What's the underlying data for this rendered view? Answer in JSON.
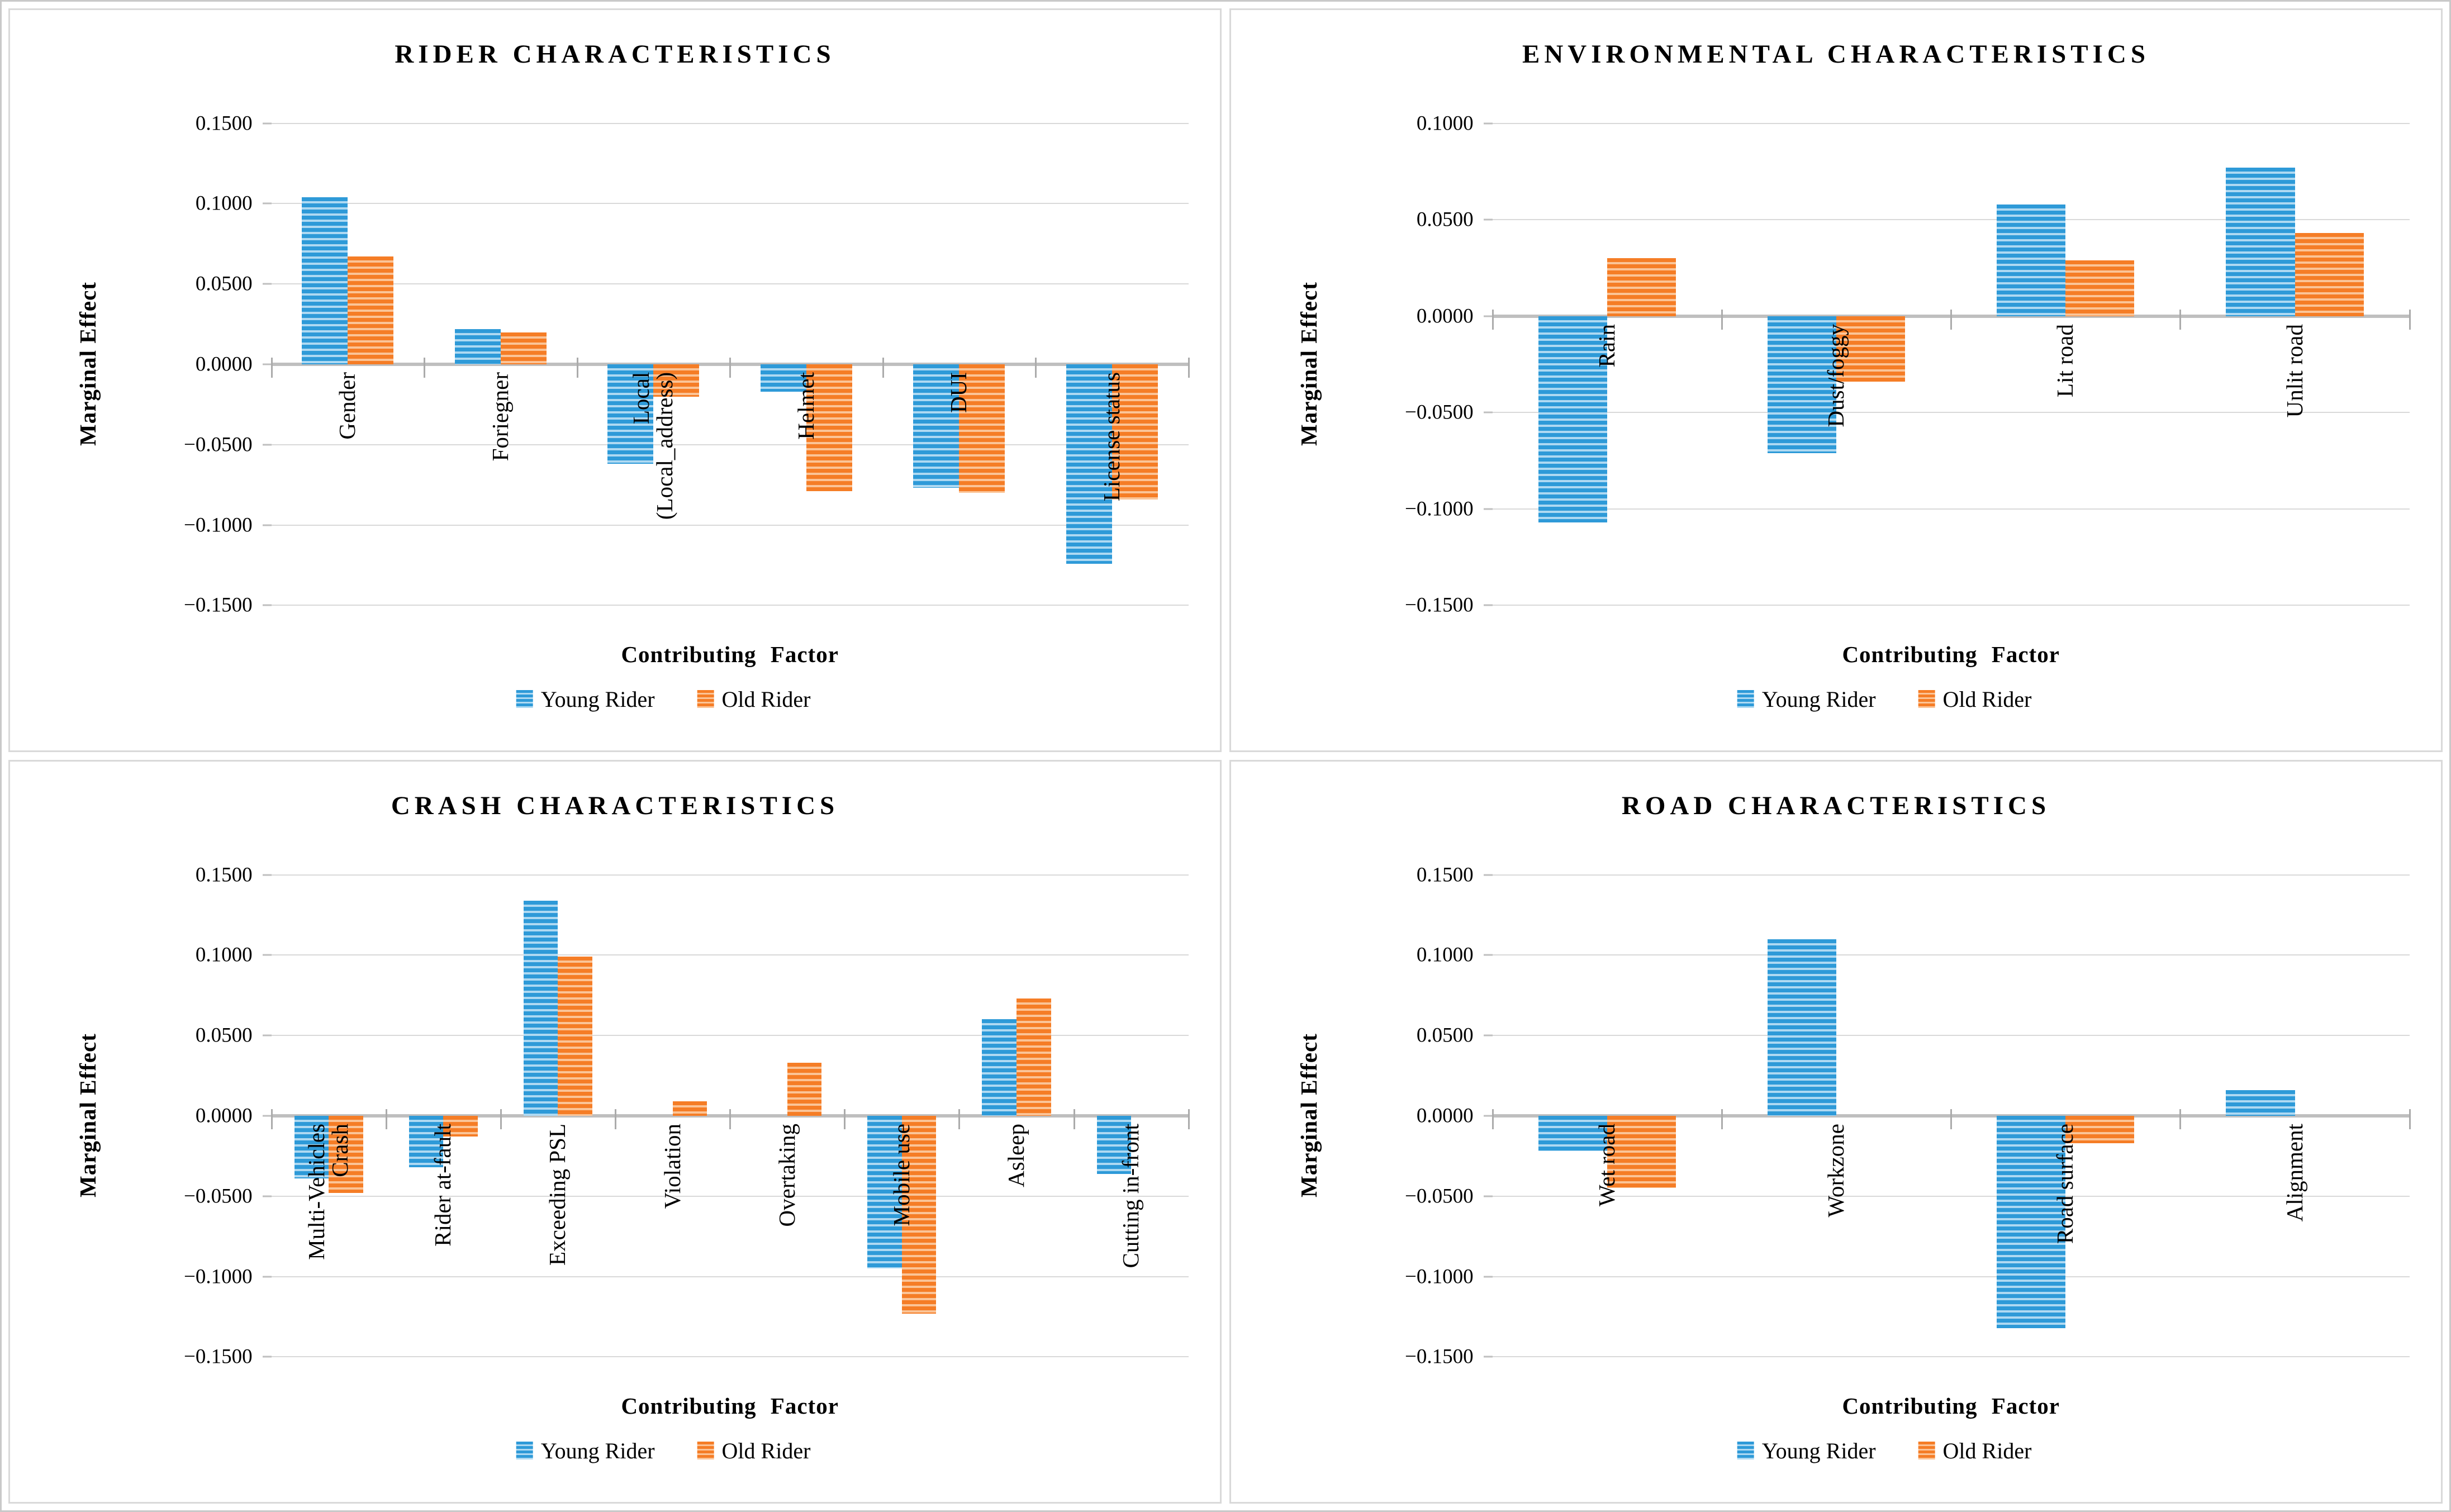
{
  "series_styles": {
    "young": {
      "color": "#2e9ad8",
      "stripe": "#aed9f2"
    },
    "old": {
      "color": "#f57d26",
      "stripe": "#fbc497"
    }
  },
  "axis_colors": {
    "gridline": "#d9d9d9",
    "zero_line": "#bfbfbf",
    "tick": "#ababab"
  },
  "chart_data": [
    {
      "type": "bar",
      "title": "RIDER CHARACTERISTICS",
      "ylabel": "Marginal Effect",
      "xlabel": "Contributing Factor",
      "ylim": [
        -0.15,
        0.15
      ],
      "grid": true,
      "legend_position": "bottom",
      "yticks": [
        {
          "v": 0.15,
          "label": "0.1500"
        },
        {
          "v": 0.1,
          "label": "0.1000"
        },
        {
          "v": 0.05,
          "label": "0.0500"
        },
        {
          "v": 0.0,
          "label": "0.0000"
        },
        {
          "v": -0.05,
          "label": "−0.0500"
        },
        {
          "v": -0.1,
          "label": "−0.1000"
        },
        {
          "v": -0.15,
          "label": "−0.1500"
        }
      ],
      "categories": [
        "Gender",
        "Foriegner",
        "Local\n(Local_address)",
        "Helmet",
        "DUI",
        "License status"
      ],
      "series": [
        {
          "name": "Young Rider",
          "style": "young",
          "values": [
            0.104,
            0.022,
            -0.062,
            -0.017,
            -0.077,
            -0.124
          ]
        },
        {
          "name": "Old Rider",
          "style": "old",
          "values": [
            0.067,
            0.02,
            -0.02,
            -0.079,
            -0.08,
            -0.084
          ]
        }
      ]
    },
    {
      "type": "bar",
      "title": "ENVIRONMENTAL CHARACTERISTICS",
      "ylabel": "Marginal Effect",
      "xlabel": "Contributing Factor",
      "ylim": [
        -0.15,
        0.1
      ],
      "grid": true,
      "legend_position": "bottom",
      "yticks": [
        {
          "v": 0.1,
          "label": "0.1000"
        },
        {
          "v": 0.05,
          "label": "0.0500"
        },
        {
          "v": 0.0,
          "label": "0.0000"
        },
        {
          "v": -0.05,
          "label": "−0.0500"
        },
        {
          "v": -0.1,
          "label": "−0.1000"
        },
        {
          "v": -0.15,
          "label": "−0.1500"
        }
      ],
      "categories": [
        "Rain",
        "Dust/foggy",
        "Lit road",
        "Unlit road"
      ],
      "series": [
        {
          "name": "Young Rider",
          "style": "young",
          "values": [
            -0.107,
            -0.071,
            0.058,
            0.077
          ]
        },
        {
          "name": "Old Rider",
          "style": "old",
          "values": [
            0.03,
            -0.034,
            0.029,
            0.043
          ]
        }
      ]
    },
    {
      "type": "bar",
      "title": "CRASH CHARACTERISTICS",
      "ylabel": "Marginal Effect",
      "xlabel": "Contributing Factor",
      "ylim": [
        -0.15,
        0.15
      ],
      "grid": true,
      "legend_position": "bottom",
      "yticks": [
        {
          "v": 0.15,
          "label": "0.1500"
        },
        {
          "v": 0.1,
          "label": "0.1000"
        },
        {
          "v": 0.05,
          "label": "0.0500"
        },
        {
          "v": 0.0,
          "label": "0.0000"
        },
        {
          "v": -0.05,
          "label": "−0.0500"
        },
        {
          "v": -0.1,
          "label": "−0.1000"
        },
        {
          "v": -0.15,
          "label": "−0.1500"
        }
      ],
      "categories": [
        "Multi-Vehicles\nCrash",
        "Rider at-fault",
        "Exceeding PSL",
        "Violation",
        "Overtaking",
        "Mobile use",
        "Asleep",
        "Cutting in-front"
      ],
      "series": [
        {
          "name": "Young Rider",
          "style": "young",
          "values": [
            -0.039,
            -0.032,
            0.134,
            0,
            0,
            -0.095,
            0.06,
            -0.036
          ]
        },
        {
          "name": "Old Rider",
          "style": "old",
          "values": [
            -0.048,
            -0.013,
            0.099,
            0.009,
            0.033,
            -0.123,
            0.073,
            0
          ]
        }
      ]
    },
    {
      "type": "bar",
      "title": "ROAD CHARACTERISTICS",
      "ylabel": "Marginal Effect",
      "xlabel": "Contributing Factor",
      "ylim": [
        -0.15,
        0.15
      ],
      "grid": true,
      "legend_position": "bottom",
      "yticks": [
        {
          "v": 0.15,
          "label": "0.1500"
        },
        {
          "v": 0.1,
          "label": "0.1000"
        },
        {
          "v": 0.05,
          "label": "0.0500"
        },
        {
          "v": 0.0,
          "label": "0.0000"
        },
        {
          "v": -0.05,
          "label": "−0.0500"
        },
        {
          "v": -0.1,
          "label": "−0.1000"
        },
        {
          "v": -0.15,
          "label": "−0.1500"
        }
      ],
      "categories": [
        "Wet road",
        "Workzone",
        "Road surface",
        "Alignment"
      ],
      "series": [
        {
          "name": "Young Rider",
          "style": "young",
          "values": [
            -0.022,
            0.11,
            -0.132,
            0.016
          ]
        },
        {
          "name": "Old Rider",
          "style": "old",
          "values": [
            -0.045,
            0,
            -0.017,
            0
          ]
        }
      ]
    }
  ]
}
